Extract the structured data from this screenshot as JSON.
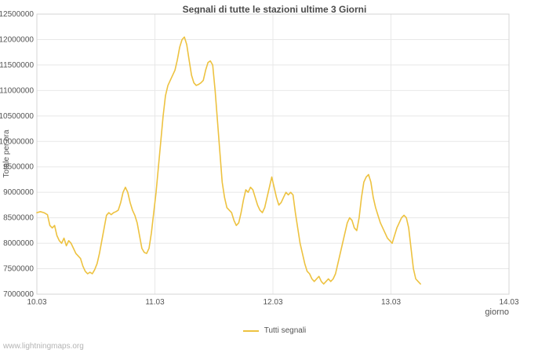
{
  "page": {
    "watermark": "www.lightningmaps.org"
  },
  "chart_data": {
    "type": "line",
    "title": "Segnali di tutte le stazioni ultime 3 Giorni",
    "xlabel": "giorno",
    "ylabel": "Totale per ora",
    "xlim": [
      10.03,
      14.03
    ],
    "ylim": [
      7000000,
      12500000
    ],
    "grid": true,
    "legend_position": "bottom-center",
    "x_ticks": [
      "10.03",
      "11.03",
      "12.03",
      "13.03",
      "14.03"
    ],
    "x_tick_values": [
      10.03,
      11.03,
      12.03,
      13.03,
      14.03
    ],
    "y_ticks": [
      7000000,
      7500000,
      8000000,
      8500000,
      9000000,
      9500000,
      10000000,
      10500000,
      11000000,
      11500000,
      12000000,
      12500000
    ],
    "colors": {
      "series": "#edc240",
      "grid": "#e8e8e8",
      "border": "#d4d4d4",
      "tick_text": "#545454"
    },
    "series": [
      {
        "name": "Tutti segnali",
        "color": "#edc240",
        "points": [
          [
            10.03,
            8600000
          ],
          [
            10.06,
            8620000
          ],
          [
            10.09,
            8600000
          ],
          [
            10.12,
            8560000
          ],
          [
            10.14,
            8350000
          ],
          [
            10.16,
            8300000
          ],
          [
            10.18,
            8350000
          ],
          [
            10.2,
            8150000
          ],
          [
            10.22,
            8050000
          ],
          [
            10.24,
            8000000
          ],
          [
            10.26,
            8100000
          ],
          [
            10.28,
            7950000
          ],
          [
            10.3,
            8050000
          ],
          [
            10.32,
            8000000
          ],
          [
            10.34,
            7900000
          ],
          [
            10.36,
            7800000
          ],
          [
            10.38,
            7750000
          ],
          [
            10.4,
            7700000
          ],
          [
            10.42,
            7550000
          ],
          [
            10.44,
            7450000
          ],
          [
            10.46,
            7400000
          ],
          [
            10.48,
            7430000
          ],
          [
            10.5,
            7400000
          ],
          [
            10.52,
            7480000
          ],
          [
            10.54,
            7600000
          ],
          [
            10.56,
            7800000
          ],
          [
            10.58,
            8050000
          ],
          [
            10.6,
            8300000
          ],
          [
            10.62,
            8550000
          ],
          [
            10.64,
            8600000
          ],
          [
            10.66,
            8560000
          ],
          [
            10.68,
            8600000
          ],
          [
            10.7,
            8620000
          ],
          [
            10.72,
            8650000
          ],
          [
            10.74,
            8800000
          ],
          [
            10.76,
            9000000
          ],
          [
            10.78,
            9100000
          ],
          [
            10.8,
            9000000
          ],
          [
            10.82,
            8800000
          ],
          [
            10.84,
            8650000
          ],
          [
            10.86,
            8550000
          ],
          [
            10.88,
            8400000
          ],
          [
            10.9,
            8150000
          ],
          [
            10.92,
            7900000
          ],
          [
            10.94,
            7820000
          ],
          [
            10.96,
            7800000
          ],
          [
            10.98,
            7900000
          ],
          [
            11.0,
            8200000
          ],
          [
            11.02,
            8600000
          ],
          [
            11.04,
            9000000
          ],
          [
            11.06,
            9500000
          ],
          [
            11.08,
            10000000
          ],
          [
            11.1,
            10500000
          ],
          [
            11.12,
            10900000
          ],
          [
            11.14,
            11100000
          ],
          [
            11.16,
            11200000
          ],
          [
            11.18,
            11300000
          ],
          [
            11.2,
            11400000
          ],
          [
            11.22,
            11600000
          ],
          [
            11.24,
            11850000
          ],
          [
            11.26,
            12000000
          ],
          [
            11.28,
            12050000
          ],
          [
            11.3,
            11900000
          ],
          [
            11.32,
            11600000
          ],
          [
            11.34,
            11300000
          ],
          [
            11.36,
            11150000
          ],
          [
            11.38,
            11100000
          ],
          [
            11.4,
            11120000
          ],
          [
            11.42,
            11150000
          ],
          [
            11.44,
            11200000
          ],
          [
            11.46,
            11400000
          ],
          [
            11.48,
            11550000
          ],
          [
            11.5,
            11580000
          ],
          [
            11.52,
            11500000
          ],
          [
            11.54,
            11000000
          ],
          [
            11.56,
            10400000
          ],
          [
            11.58,
            9800000
          ],
          [
            11.6,
            9200000
          ],
          [
            11.62,
            8900000
          ],
          [
            11.64,
            8700000
          ],
          [
            11.66,
            8650000
          ],
          [
            11.68,
            8600000
          ],
          [
            11.7,
            8450000
          ],
          [
            11.72,
            8350000
          ],
          [
            11.74,
            8400000
          ],
          [
            11.76,
            8600000
          ],
          [
            11.78,
            8850000
          ],
          [
            11.8,
            9050000
          ],
          [
            11.82,
            9000000
          ],
          [
            11.84,
            9100000
          ],
          [
            11.86,
            9050000
          ],
          [
            11.88,
            8900000
          ],
          [
            11.9,
            8750000
          ],
          [
            11.92,
            8650000
          ],
          [
            11.94,
            8600000
          ],
          [
            11.96,
            8700000
          ],
          [
            11.98,
            8900000
          ],
          [
            12.0,
            9100000
          ],
          [
            12.02,
            9300000
          ],
          [
            12.04,
            9100000
          ],
          [
            12.06,
            8900000
          ],
          [
            12.08,
            8750000
          ],
          [
            12.1,
            8800000
          ],
          [
            12.12,
            8900000
          ],
          [
            12.14,
            9000000
          ],
          [
            12.16,
            8950000
          ],
          [
            12.18,
            9000000
          ],
          [
            12.2,
            8950000
          ],
          [
            12.22,
            8600000
          ],
          [
            12.24,
            8300000
          ],
          [
            12.26,
            8000000
          ],
          [
            12.28,
            7800000
          ],
          [
            12.3,
            7600000
          ],
          [
            12.32,
            7450000
          ],
          [
            12.34,
            7400000
          ],
          [
            12.36,
            7300000
          ],
          [
            12.38,
            7250000
          ],
          [
            12.4,
            7300000
          ],
          [
            12.42,
            7350000
          ],
          [
            12.44,
            7250000
          ],
          [
            12.46,
            7200000
          ],
          [
            12.48,
            7250000
          ],
          [
            12.5,
            7300000
          ],
          [
            12.52,
            7250000
          ],
          [
            12.54,
            7300000
          ],
          [
            12.56,
            7400000
          ],
          [
            12.58,
            7600000
          ],
          [
            12.6,
            7800000
          ],
          [
            12.62,
            8000000
          ],
          [
            12.64,
            8200000
          ],
          [
            12.66,
            8400000
          ],
          [
            12.68,
            8500000
          ],
          [
            12.7,
            8450000
          ],
          [
            12.72,
            8300000
          ],
          [
            12.74,
            8250000
          ],
          [
            12.76,
            8500000
          ],
          [
            12.78,
            8900000
          ],
          [
            12.8,
            9200000
          ],
          [
            12.82,
            9300000
          ],
          [
            12.84,
            9350000
          ],
          [
            12.86,
            9200000
          ],
          [
            12.88,
            8900000
          ],
          [
            12.9,
            8700000
          ],
          [
            12.92,
            8550000
          ],
          [
            12.94,
            8400000
          ],
          [
            12.96,
            8300000
          ],
          [
            12.98,
            8200000
          ],
          [
            13.0,
            8100000
          ],
          [
            13.02,
            8050000
          ],
          [
            13.04,
            8000000
          ],
          [
            13.06,
            8150000
          ],
          [
            13.08,
            8300000
          ],
          [
            13.1,
            8400000
          ],
          [
            13.12,
            8500000
          ],
          [
            13.14,
            8550000
          ],
          [
            13.16,
            8500000
          ],
          [
            13.18,
            8300000
          ],
          [
            13.2,
            7900000
          ],
          [
            13.22,
            7500000
          ],
          [
            13.24,
            7300000
          ],
          [
            13.26,
            7250000
          ],
          [
            13.28,
            7200000
          ]
        ]
      }
    ]
  }
}
